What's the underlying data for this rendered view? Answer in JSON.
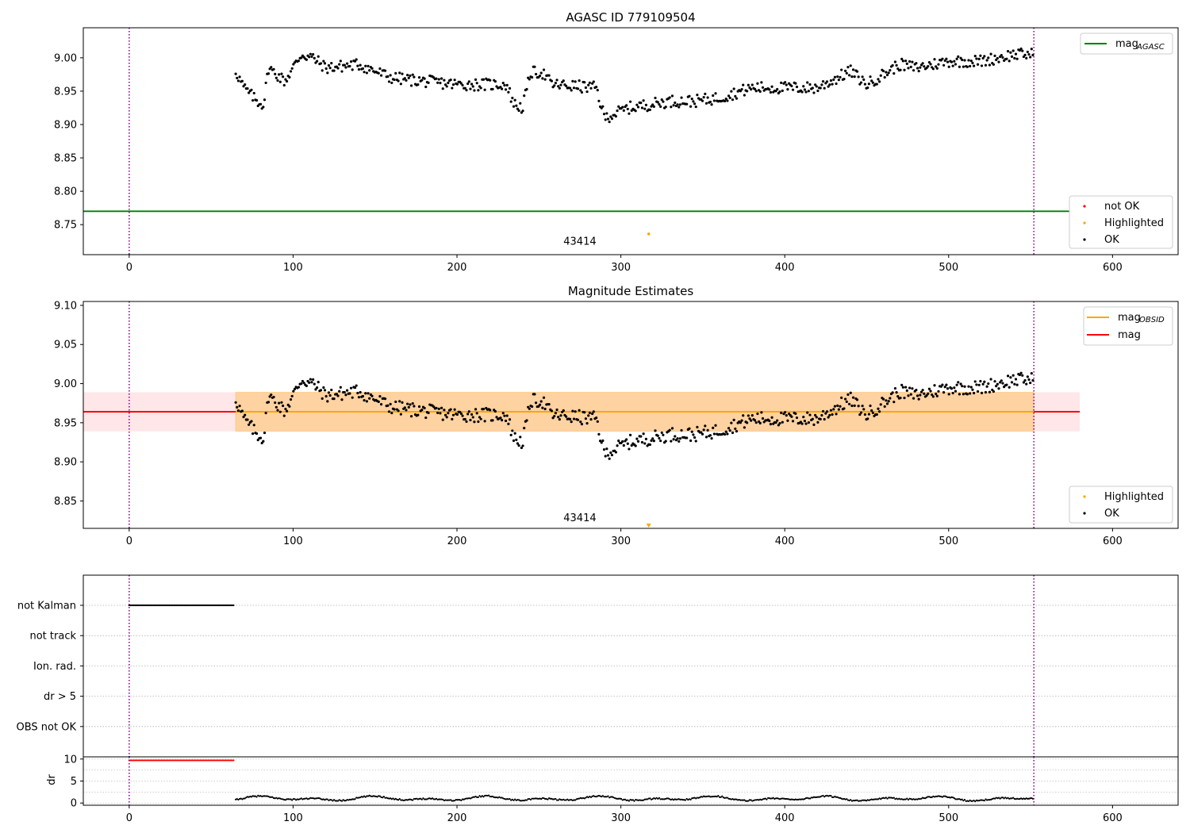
{
  "chart_data": [
    {
      "type": "scatter",
      "title": "AGASC ID 779109504",
      "xlim": [
        -28,
        640
      ],
      "ylim": [
        8.705,
        9.045
      ],
      "xticks": [
        0,
        100,
        200,
        300,
        400,
        500,
        600
      ],
      "yticks": [
        8.75,
        8.8,
        8.85,
        8.9,
        8.95,
        9.0
      ],
      "grid": false,
      "vlines": [
        0,
        552
      ],
      "hline": {
        "name": "mag_AGASC",
        "value": 8.77,
        "x_end": 580,
        "color": "#008000"
      },
      "annotation": {
        "text": "43414",
        "x": 275,
        "y": 8.715
      },
      "highlighted_points": [
        {
          "x": 317,
          "y": 8.736
        }
      ],
      "ok_series_profile": {
        "x_start": 65,
        "x_end": 552,
        "anchors": [
          [
            65,
            8.98
          ],
          [
            70,
            8.955
          ],
          [
            78,
            8.935
          ],
          [
            82,
            8.93
          ],
          [
            85,
            8.985
          ],
          [
            95,
            8.965
          ],
          [
            105,
            9.005
          ],
          [
            112,
            9.0
          ],
          [
            120,
            8.985
          ],
          [
            140,
            8.99
          ],
          [
            160,
            8.97
          ],
          [
            200,
            8.96
          ],
          [
            230,
            8.96
          ],
          [
            235,
            8.93
          ],
          [
            240,
            8.925
          ],
          [
            245,
            8.978
          ],
          [
            252,
            8.978
          ],
          [
            258,
            8.96
          ],
          [
            285,
            8.955
          ],
          [
            290,
            8.91
          ],
          [
            305,
            8.925
          ],
          [
            330,
            8.935
          ],
          [
            345,
            8.935
          ],
          [
            360,
            8.94
          ],
          [
            380,
            8.955
          ],
          [
            400,
            8.955
          ],
          [
            420,
            8.955
          ],
          [
            440,
            8.98
          ],
          [
            450,
            8.96
          ],
          [
            470,
            8.99
          ],
          [
            480,
            8.985
          ],
          [
            500,
            8.995
          ],
          [
            520,
            8.995
          ],
          [
            540,
            9.005
          ],
          [
            552,
            9.005
          ]
        ]
      },
      "legend_top": [
        {
          "label": "mag",
          "subscript": "AGASC",
          "color": "#008000"
        }
      ],
      "legend_bottom": [
        {
          "label": "not OK",
          "color": "#ff0000"
        },
        {
          "label": "Highlighted",
          "color": "#ffa500"
        },
        {
          "label": "OK",
          "color": "#000000"
        }
      ]
    },
    {
      "type": "scatter",
      "title": "Magnitude Estimates",
      "xlim": [
        -28,
        640
      ],
      "ylim": [
        8.815,
        9.105
      ],
      "xticks": [
        0,
        100,
        200,
        300,
        400,
        500,
        600
      ],
      "yticks": [
        8.85,
        8.9,
        8.95,
        9.0,
        9.05,
        9.1
      ],
      "grid": false,
      "vlines": [
        0,
        552
      ],
      "bands": [
        {
          "x_start": -28,
          "x_end": 580,
          "y_low": 8.939,
          "y_high": 8.989,
          "color": "#ffb6c1"
        },
        {
          "x_start": 65,
          "x_end": 552,
          "y_low": 8.939,
          "y_high": 8.989,
          "color": "#ffa500"
        }
      ],
      "hlines": [
        {
          "name": "mag",
          "value": 8.964,
          "x_end": 580,
          "color": "#ff0000"
        },
        {
          "name": "mag_OBSID",
          "value": 8.964,
          "x_start": 65,
          "x_end": 552,
          "color": "#ffa500"
        }
      ],
      "annotation": {
        "text": "43414",
        "x": 275,
        "y": 8.818
      },
      "highlighted_points": [
        {
          "x": 317,
          "y": 8.818
        }
      ],
      "legend_top": [
        {
          "label": "mag",
          "subscript": "OBSID",
          "color": "#ffa500"
        },
        {
          "label": "mag",
          "subscript": "",
          "color": "#ff0000"
        }
      ],
      "legend_bottom": [
        {
          "label": "Highlighted",
          "color": "#ffa500"
        },
        {
          "label": "OK",
          "color": "#000000"
        }
      ]
    },
    {
      "type": "scatter",
      "title": "",
      "xlim": [
        -28,
        640
      ],
      "categories": [
        "not Kalman",
        "not track",
        "Ion. rad.",
        "dr > 5",
        "OBS not OK"
      ],
      "flags": [
        {
          "category": "not Kalman",
          "x_start": 0,
          "x_end": 64
        }
      ],
      "vlines": [
        0,
        552
      ],
      "grid": "y-dotted"
    },
    {
      "type": "scatter",
      "title": "",
      "xlim": [
        -28,
        640
      ],
      "ylim": [
        -0.5,
        10.5
      ],
      "ylabel": "dr",
      "xticks": [
        0,
        100,
        200,
        300,
        400,
        500,
        600
      ],
      "yticks": [
        0,
        5,
        10
      ],
      "vlines": [
        0,
        552
      ],
      "not_ok_segment": {
        "x_start": 0,
        "x_end": 64,
        "y": 9.7
      },
      "ok_segment": {
        "x_start": 65,
        "x_end": 552,
        "y_mean": 1.0,
        "y_amp": 0.6
      }
    }
  ]
}
